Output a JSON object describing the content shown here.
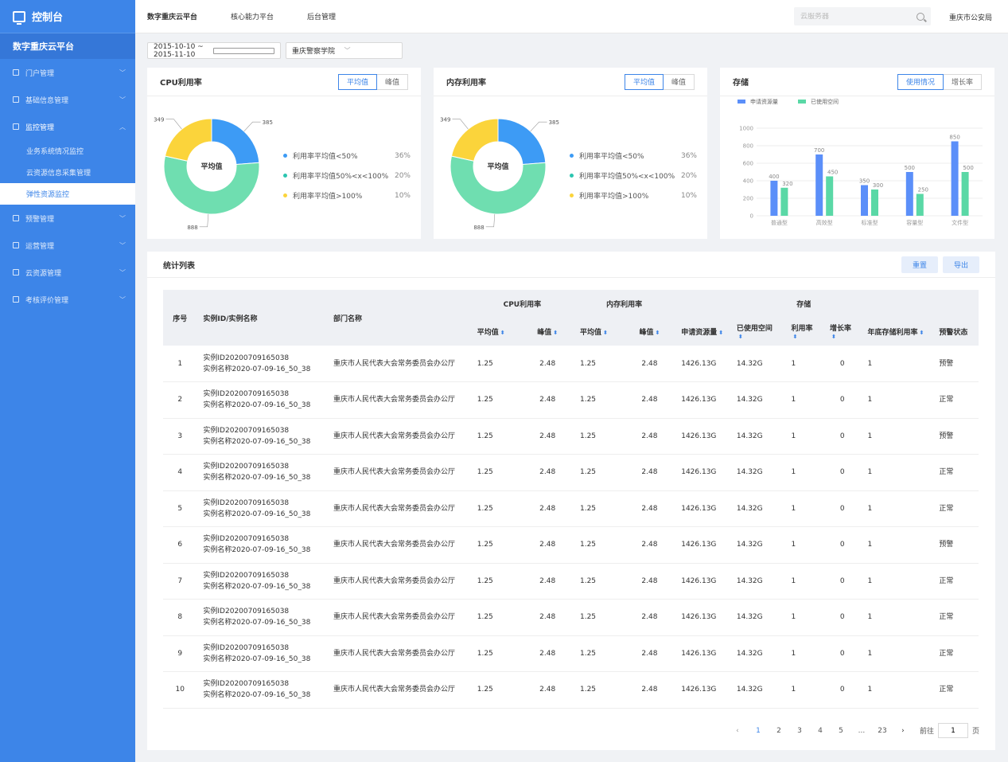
{
  "sidebar": {
    "logo_title": "控制台",
    "platform": "数字重庆云平台",
    "items": [
      {
        "label": "门户管理"
      },
      {
        "label": "基础信息管理"
      },
      {
        "label": "监控管理",
        "sub": [
          "业务系统情况监控",
          "云资源信息采集管理",
          "弹性资源监控"
        ]
      },
      {
        "label": "预警管理"
      },
      {
        "label": "运营管理"
      },
      {
        "label": "云资源管理"
      },
      {
        "label": "考核评价管理"
      }
    ]
  },
  "topbar": {
    "nav": [
      "数字重庆云平台",
      "核心能力平台",
      "后台管理"
    ],
    "search_placeholder": "云服务器",
    "user": "重庆市公安局"
  },
  "filters": {
    "date_range": "2015-10-10 ~ 2015-11-10",
    "department": "重庆警察学院"
  },
  "cpu_card": {
    "title": "CPU利用率",
    "toggle": [
      "平均值",
      "峰值"
    ],
    "center_label": "平均值",
    "legend": [
      {
        "label": "利用率平均值<50%",
        "value": "36%"
      },
      {
        "label": "利用率平均值50%<x<100%",
        "value": "20%"
      },
      {
        "label": "利用率平均值>100%",
        "value": "10%"
      }
    ]
  },
  "mem_card": {
    "title": "内存利用率",
    "toggle": [
      "平均值",
      "峰值"
    ],
    "center_label": "平均值",
    "legend": [
      {
        "label": "利用率平均值<50%",
        "value": "36%"
      },
      {
        "label": "利用率平均值50%<x<100%",
        "value": "20%"
      },
      {
        "label": "利用率平均值>100%",
        "value": "10%"
      }
    ]
  },
  "storage_card": {
    "title": "存储",
    "toggle": [
      "使用情况",
      "增长率"
    ]
  },
  "colors": {
    "blue": "#3d9bf5",
    "green": "#6fdeb0",
    "yellow": "#fbd43b",
    "bar_blue": "#5b8ff9",
    "bar_green": "#5ad8a6",
    "accent": "#3d85e8"
  },
  "chart_data": [
    {
      "type": "pie",
      "labels": [
        "385",
        "888",
        "349"
      ],
      "values": [
        385,
        888,
        349
      ],
      "colors": [
        "#3d9bf5",
        "#6fdeb0",
        "#fbd43b"
      ]
    },
    {
      "type": "pie",
      "labels": [
        "385",
        "888",
        "349"
      ],
      "values": [
        385,
        888,
        349
      ],
      "colors": [
        "#3d9bf5",
        "#6fdeb0",
        "#fbd43b"
      ]
    },
    {
      "type": "bar",
      "categories": [
        "普通型",
        "高效型",
        "标准型",
        "容量型",
        "文件型"
      ],
      "series": [
        {
          "name": "申请资源量",
          "values": [
            400,
            700,
            350,
            500,
            850
          ]
        },
        {
          "name": "已使用空间",
          "values": [
            320,
            450,
            300,
            250,
            500
          ]
        }
      ],
      "yticks": [
        "0",
        "200",
        "400",
        "600",
        "800",
        "1000"
      ],
      "ylim": [
        0,
        1000
      ],
      "legend": "top-left",
      "grid": true
    }
  ],
  "table": {
    "title": "统计列表",
    "btn_reset": "重置",
    "btn_export": "导出",
    "headers": {
      "index": "序号",
      "instance": "实例ID/实例名称",
      "dept": "部门名称",
      "cpu": "CPU利用率",
      "mem": "内存利用率",
      "storage": "存储",
      "avg": "平均值",
      "peak": "峰值",
      "applied": "申请资源量",
      "used": "已使用空间",
      "usage": "利用率",
      "growth": "增长率",
      "year_end": "年底存储利用率",
      "alert": "预警状态"
    },
    "rows": [
      {
        "idx": "1",
        "id": "实例ID20200709165038",
        "name": "实例名称2020-07-09-16_50_38",
        "dept": "重庆市人民代表大会常务委员会办公厅",
        "cpu_avg": "1.25",
        "cpu_peak": "2.48",
        "mem_avg": "1.25",
        "mem_peak": "2.48",
        "applied": "1426.13G",
        "used": "14.32G",
        "usage": "1",
        "growth": "0",
        "year_end": "1",
        "status": "预警",
        "warn": true
      },
      {
        "idx": "2",
        "id": "实例ID20200709165038",
        "name": "实例名称2020-07-09-16_50_38",
        "dept": "重庆市人民代表大会常务委员会办公厅",
        "cpu_avg": "1.25",
        "cpu_peak": "2.48",
        "mem_avg": "1.25",
        "mem_peak": "2.48",
        "applied": "1426.13G",
        "used": "14.32G",
        "usage": "1",
        "growth": "0",
        "year_end": "1",
        "status": "正常",
        "warn": false
      },
      {
        "idx": "3",
        "id": "实例ID20200709165038",
        "name": "实例名称2020-07-09-16_50_38",
        "dept": "重庆市人民代表大会常务委员会办公厅",
        "cpu_avg": "1.25",
        "cpu_peak": "2.48",
        "mem_avg": "1.25",
        "mem_peak": "2.48",
        "applied": "1426.13G",
        "used": "14.32G",
        "usage": "1",
        "growth": "0",
        "year_end": "1",
        "status": "预警",
        "warn": true
      },
      {
        "idx": "4",
        "id": "实例ID20200709165038",
        "name": "实例名称2020-07-09-16_50_38",
        "dept": "重庆市人民代表大会常务委员会办公厅",
        "cpu_avg": "1.25",
        "cpu_peak": "2.48",
        "mem_avg": "1.25",
        "mem_peak": "2.48",
        "applied": "1426.13G",
        "used": "14.32G",
        "usage": "1",
        "growth": "0",
        "year_end": "1",
        "status": "正常",
        "warn": false
      },
      {
        "idx": "5",
        "id": "实例ID20200709165038",
        "name": "实例名称2020-07-09-16_50_38",
        "dept": "重庆市人民代表大会常务委员会办公厅",
        "cpu_avg": "1.25",
        "cpu_peak": "2.48",
        "mem_avg": "1.25",
        "mem_peak": "2.48",
        "applied": "1426.13G",
        "used": "14.32G",
        "usage": "1",
        "growth": "0",
        "year_end": "1",
        "status": "正常",
        "warn": false
      },
      {
        "idx": "6",
        "id": "实例ID20200709165038",
        "name": "实例名称2020-07-09-16_50_38",
        "dept": "重庆市人民代表大会常务委员会办公厅",
        "cpu_avg": "1.25",
        "cpu_peak": "2.48",
        "mem_avg": "1.25",
        "mem_peak": "2.48",
        "applied": "1426.13G",
        "used": "14.32G",
        "usage": "1",
        "growth": "0",
        "year_end": "1",
        "status": "预警",
        "warn": true
      },
      {
        "idx": "7",
        "id": "实例ID20200709165038",
        "name": "实例名称2020-07-09-16_50_38",
        "dept": "重庆市人民代表大会常务委员会办公厅",
        "cpu_avg": "1.25",
        "cpu_peak": "2.48",
        "mem_avg": "1.25",
        "mem_peak": "2.48",
        "applied": "1426.13G",
        "used": "14.32G",
        "usage": "1",
        "growth": "0",
        "year_end": "1",
        "status": "正常",
        "warn": false
      },
      {
        "idx": "8",
        "id": "实例ID20200709165038",
        "name": "实例名称2020-07-09-16_50_38",
        "dept": "重庆市人民代表大会常务委员会办公厅",
        "cpu_avg": "1.25",
        "cpu_peak": "2.48",
        "mem_avg": "1.25",
        "mem_peak": "2.48",
        "applied": "1426.13G",
        "used": "14.32G",
        "usage": "1",
        "growth": "0",
        "year_end": "1",
        "status": "正常",
        "warn": false
      },
      {
        "idx": "9",
        "id": "实例ID20200709165038",
        "name": "实例名称2020-07-09-16_50_38",
        "dept": "重庆市人民代表大会常务委员会办公厅",
        "cpu_avg": "1.25",
        "cpu_peak": "2.48",
        "mem_avg": "1.25",
        "mem_peak": "2.48",
        "applied": "1426.13G",
        "used": "14.32G",
        "usage": "1",
        "growth": "0",
        "year_end": "1",
        "status": "正常",
        "warn": false
      },
      {
        "idx": "10",
        "id": "实例ID20200709165038",
        "name": "实例名称2020-07-09-16_50_38",
        "dept": "重庆市人民代表大会常务委员会办公厅",
        "cpu_avg": "1.25",
        "cpu_peak": "2.48",
        "mem_avg": "1.25",
        "mem_peak": "2.48",
        "applied": "1426.13G",
        "used": "14.32G",
        "usage": "1",
        "growth": "0",
        "year_end": "1",
        "status": "正常",
        "warn": false
      }
    ]
  },
  "pagination": {
    "pages": [
      "1",
      "2",
      "3",
      "4",
      "5",
      "...",
      "23"
    ],
    "current": "1",
    "goto_label": "前往",
    "page_suffix": "页",
    "goto_value": "1"
  }
}
